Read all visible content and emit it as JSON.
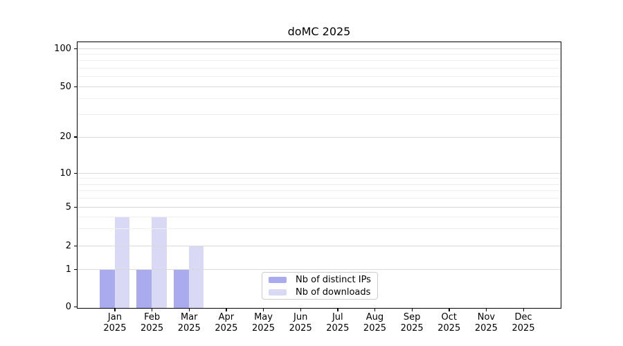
{
  "figure": {
    "background": "#ffffff"
  },
  "chart_data": {
    "type": "bar",
    "title": "doMC 2025",
    "categories": [
      "Jan",
      "Feb",
      "Mar",
      "Apr",
      "May",
      "Jun",
      "Jul",
      "Aug",
      "Sep",
      "Oct",
      "Nov",
      "Dec"
    ],
    "category_year": "2025",
    "series": [
      {
        "name": "Nb of distinct IPs",
        "color": "#aaaaee",
        "values": [
          1,
          1,
          1,
          0,
          0,
          0,
          0,
          0,
          0,
          0,
          0,
          0
        ]
      },
      {
        "name": "Nb of downloads",
        "color": "#d9d9f6",
        "values": [
          4,
          4,
          2,
          0,
          0,
          0,
          0,
          0,
          0,
          0,
          0,
          0
        ]
      }
    ],
    "xlabel": "",
    "ylabel": "",
    "ylim": [
      0,
      100
    ],
    "yscale": "log-with-zero-baseline",
    "yticks": [
      0,
      1,
      2,
      5,
      10,
      20,
      50,
      100
    ],
    "minor_yticks": [
      3,
      4,
      6,
      7,
      8,
      9,
      30,
      40,
      60,
      70,
      80,
      90
    ],
    "grid": true,
    "legend_position": "bottom-center",
    "axis_color": "#000000",
    "major_grid_color": "#d9d9d9",
    "minor_grid_color": "#f0f0f0"
  }
}
